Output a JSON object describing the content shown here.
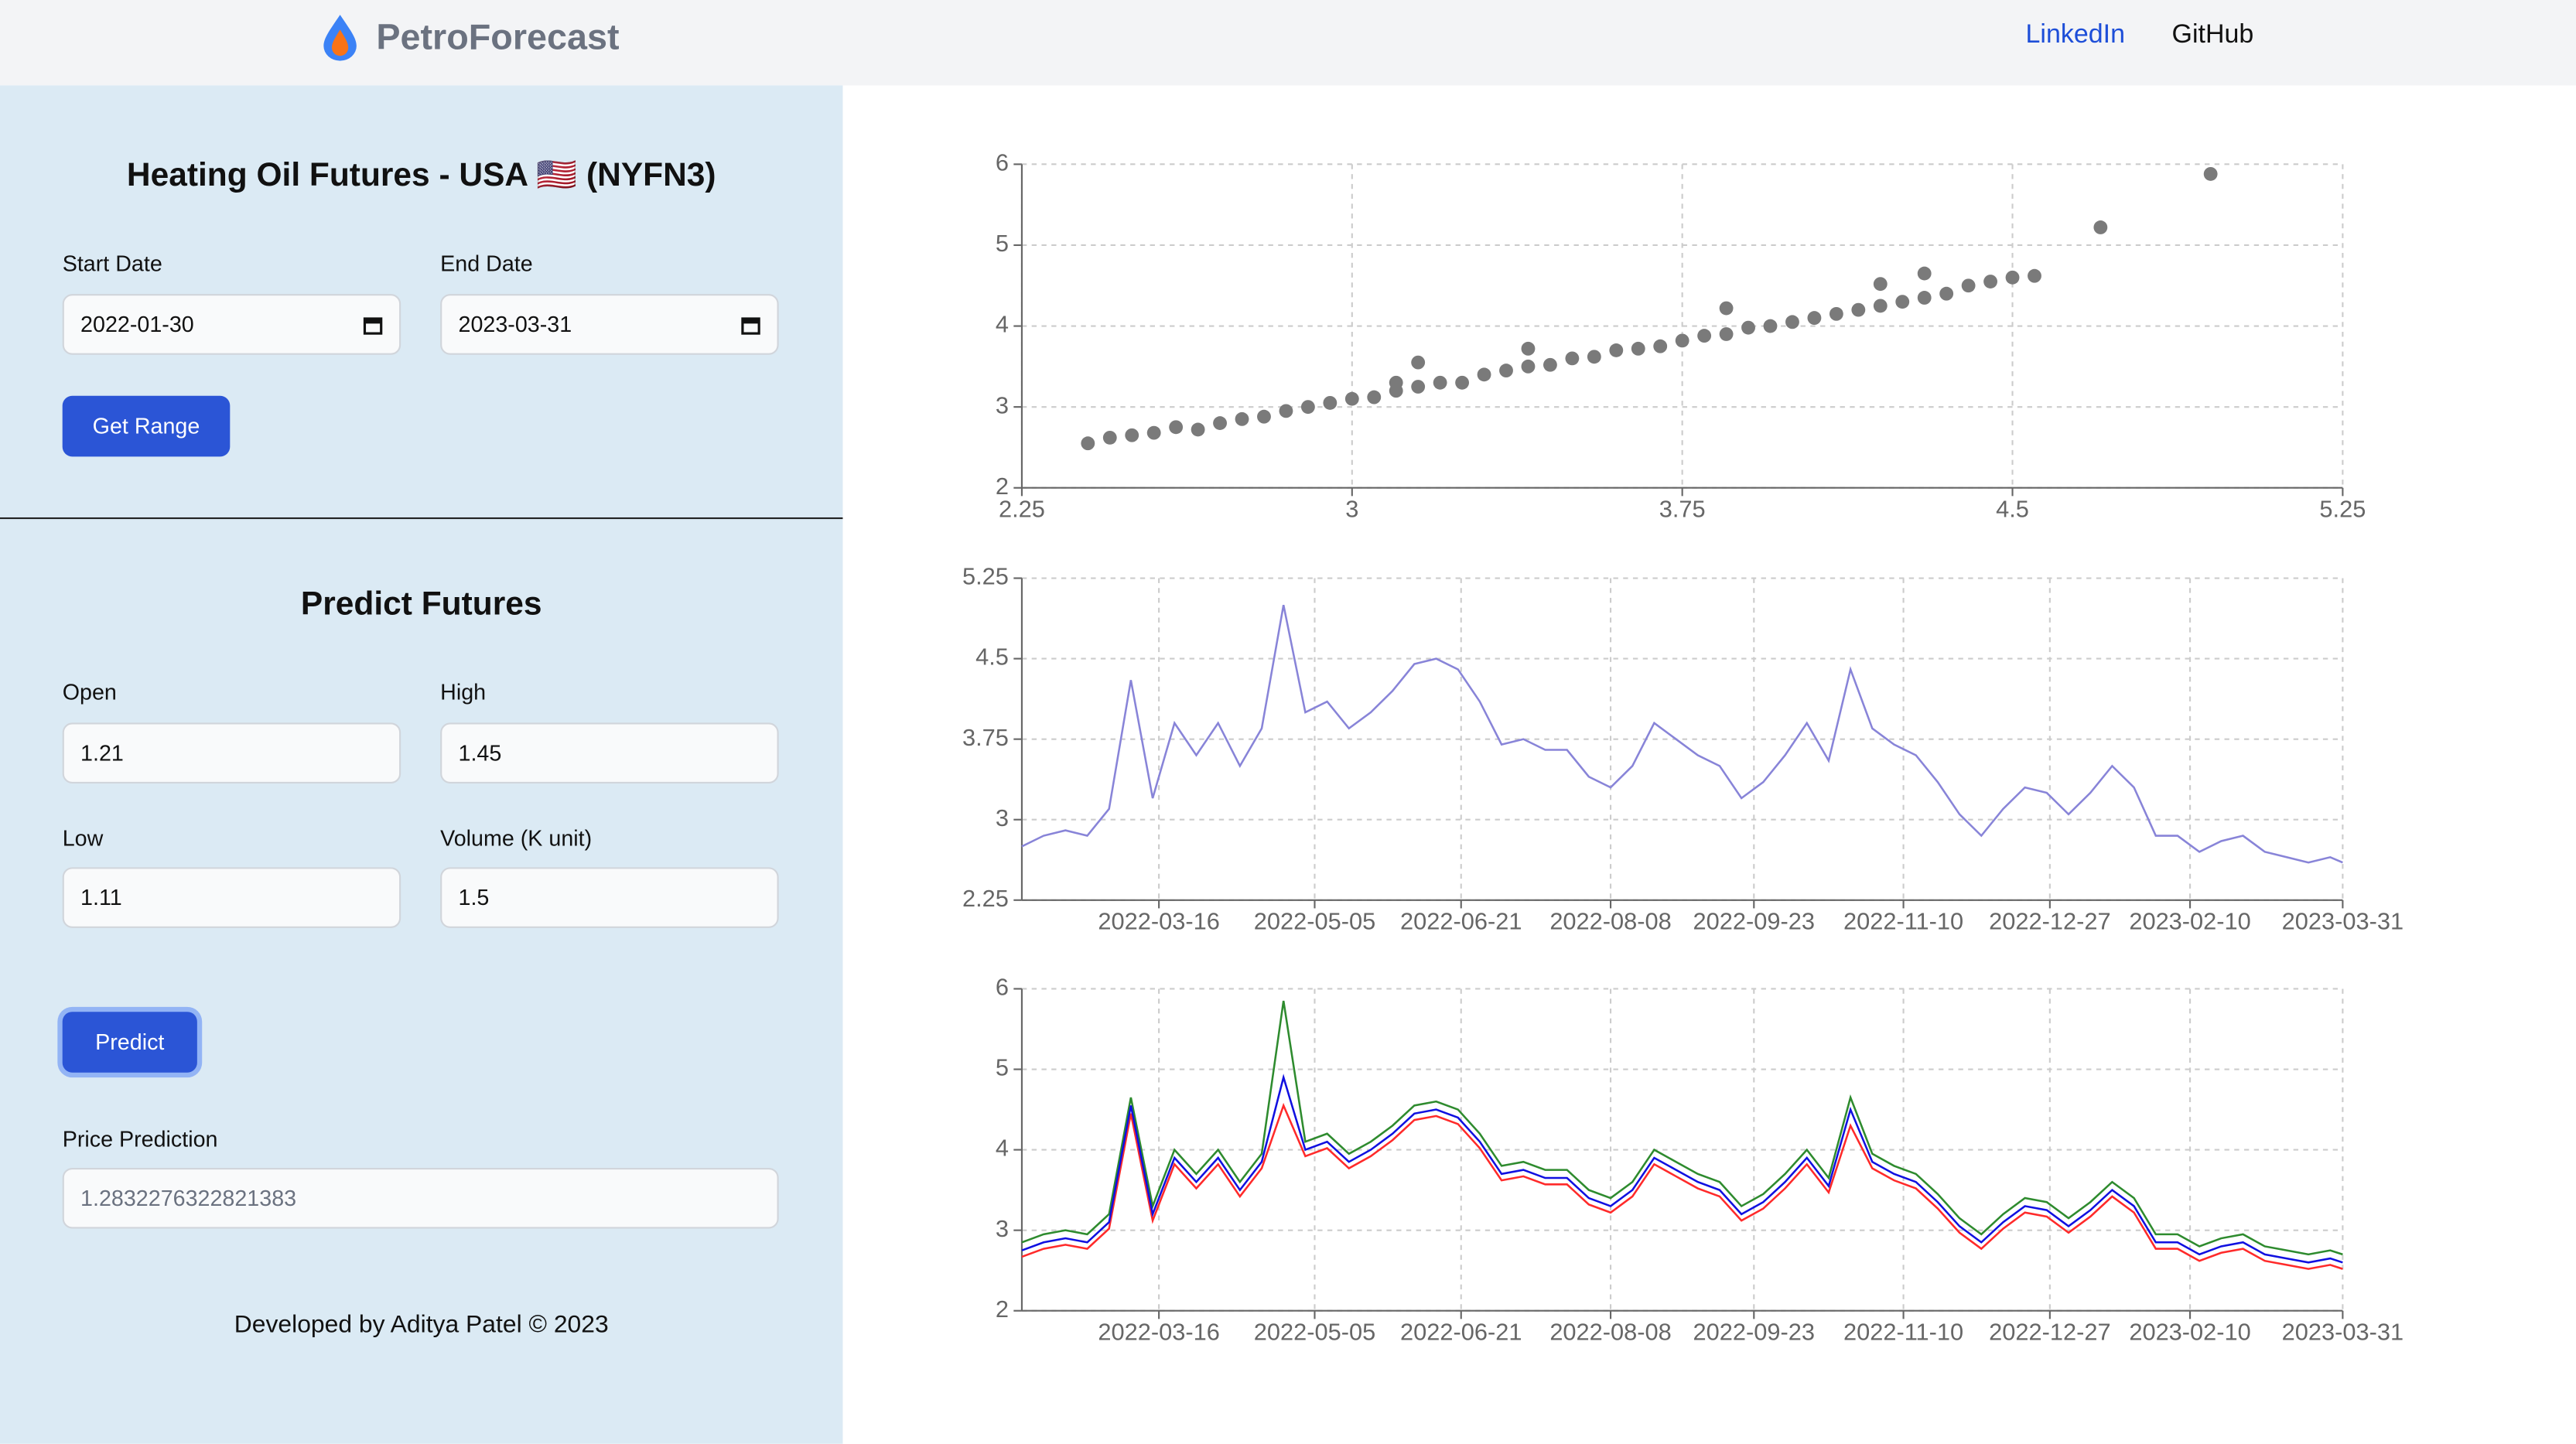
{
  "header": {
    "brand": "PetroForecast",
    "links": [
      "LinkedIn",
      "GitHub"
    ]
  },
  "range_form": {
    "title": "Heating Oil Futures - USA 🇺🇸 (NYFN3)",
    "start_label": "Start Date",
    "start_value": "2022-01-30",
    "end_label": "End Date",
    "end_value": "2023-03-31",
    "button": "Get Range"
  },
  "predict_form": {
    "title": "Predict Futures",
    "fields": [
      {
        "label": "Open",
        "value": "1.21"
      },
      {
        "label": "High",
        "value": "1.45"
      },
      {
        "label": "Low",
        "value": "1.11"
      },
      {
        "label": "Volume (K unit)",
        "value": "1.5"
      }
    ],
    "button": "Predict",
    "result_label": "Price Prediction",
    "result_value": "1.2832276322821383"
  },
  "footer": "Developed by Aditya Patel © 2023",
  "chart_data": [
    {
      "type": "scatter",
      "color": "#7a7a7a",
      "grid": true,
      "x": [
        2.4,
        2.45,
        2.5,
        2.55,
        2.6,
        2.65,
        2.7,
        2.75,
        2.8,
        2.85,
        2.9,
        2.95,
        3.0,
        3.05,
        3.1,
        3.15,
        3.2,
        3.25,
        3.3,
        3.35,
        3.4,
        3.45,
        3.5,
        3.55,
        3.6,
        3.65,
        3.7,
        3.75,
        3.8,
        3.85,
        3.9,
        3.95,
        4.0,
        4.05,
        4.1,
        4.15,
        4.2,
        4.25,
        4.3,
        4.35,
        4.4,
        4.45,
        4.5,
        4.55,
        4.7,
        4.95,
        3.15,
        3.4,
        3.85,
        4.2,
        4.3,
        3.1
      ],
      "values": [
        2.55,
        2.62,
        2.65,
        2.68,
        2.75,
        2.72,
        2.8,
        2.85,
        2.88,
        2.95,
        3.0,
        3.05,
        3.1,
        3.12,
        3.2,
        3.25,
        3.3,
        3.3,
        3.4,
        3.45,
        3.5,
        3.52,
        3.6,
        3.62,
        3.7,
        3.72,
        3.75,
        3.82,
        3.88,
        3.9,
        3.98,
        4.0,
        4.05,
        4.1,
        4.15,
        4.2,
        4.25,
        4.3,
        4.35,
        4.4,
        4.5,
        4.55,
        4.6,
        4.62,
        5.22,
        5.88,
        3.55,
        3.72,
        4.22,
        4.52,
        4.65,
        3.3
      ],
      "xlim": [
        2.25,
        5.25
      ],
      "xticks": [
        2.25,
        3,
        3.75,
        4.5,
        5.25
      ],
      "ylim": [
        2,
        6
      ],
      "yticks": [
        2,
        3,
        4,
        5,
        6
      ]
    },
    {
      "type": "line",
      "grid": true,
      "x": [
        "2022-01-31",
        "2022-02-07",
        "2022-02-14",
        "2022-02-21",
        "2022-02-28",
        "2022-03-07",
        "2022-03-14",
        "2022-03-21",
        "2022-03-28",
        "2022-04-04",
        "2022-04-11",
        "2022-04-18",
        "2022-04-25",
        "2022-05-02",
        "2022-05-09",
        "2022-05-16",
        "2022-05-23",
        "2022-05-30",
        "2022-06-06",
        "2022-06-13",
        "2022-06-20",
        "2022-06-27",
        "2022-07-04",
        "2022-07-11",
        "2022-07-18",
        "2022-07-25",
        "2022-08-01",
        "2022-08-08",
        "2022-08-15",
        "2022-08-22",
        "2022-08-29",
        "2022-09-05",
        "2022-09-12",
        "2022-09-19",
        "2022-09-26",
        "2022-10-03",
        "2022-10-10",
        "2022-10-17",
        "2022-10-24",
        "2022-10-31",
        "2022-11-07",
        "2022-11-14",
        "2022-11-21",
        "2022-11-28",
        "2022-12-05",
        "2022-12-12",
        "2022-12-19",
        "2022-12-26",
        "2023-01-02",
        "2023-01-09",
        "2023-01-16",
        "2023-01-23",
        "2023-01-30",
        "2023-02-06",
        "2023-02-13",
        "2023-02-20",
        "2023-02-27",
        "2023-03-06",
        "2023-03-13",
        "2023-03-20",
        "2023-03-27",
        "2023-03-31"
      ],
      "series": [
        {
          "color": "#8884d8",
          "values": [
            2.75,
            2.85,
            2.9,
            2.85,
            3.1,
            4.3,
            3.2,
            3.9,
            3.6,
            3.9,
            3.5,
            3.85,
            5.0,
            4.0,
            4.1,
            3.85,
            4.0,
            4.2,
            4.45,
            4.5,
            4.4,
            4.1,
            3.7,
            3.75,
            3.65,
            3.65,
            3.4,
            3.3,
            3.5,
            3.9,
            3.75,
            3.6,
            3.5,
            3.2,
            3.35,
            3.6,
            3.9,
            3.55,
            4.4,
            3.85,
            3.7,
            3.6,
            3.35,
            3.05,
            2.85,
            3.1,
            3.3,
            3.25,
            3.05,
            3.25,
            3.5,
            3.3,
            2.85,
            2.85,
            2.7,
            2.8,
            2.85,
            2.7,
            2.65,
            2.6,
            2.65,
            2.6
          ]
        }
      ],
      "xlim": [
        "2022-01-31",
        "2023-03-31"
      ],
      "xticks": [
        "2022-03-16",
        "2022-05-05",
        "2022-06-21",
        "2022-08-08",
        "2022-09-23",
        "2022-11-10",
        "2022-12-27",
        "2023-02-10",
        "2023-03-31"
      ],
      "ylim": [
        2.25,
        5.25
      ],
      "yticks": [
        2.25,
        3,
        3.75,
        4.5,
        5.25
      ]
    },
    {
      "type": "line",
      "grid": true,
      "x": [
        "2022-01-31",
        "2022-02-07",
        "2022-02-14",
        "2022-02-21",
        "2022-02-28",
        "2022-03-07",
        "2022-03-14",
        "2022-03-21",
        "2022-03-28",
        "2022-04-04",
        "2022-04-11",
        "2022-04-18",
        "2022-04-25",
        "2022-05-02",
        "2022-05-09",
        "2022-05-16",
        "2022-05-23",
        "2022-05-30",
        "2022-06-06",
        "2022-06-13",
        "2022-06-20",
        "2022-06-27",
        "2022-07-04",
        "2022-07-11",
        "2022-07-18",
        "2022-07-25",
        "2022-08-01",
        "2022-08-08",
        "2022-08-15",
        "2022-08-22",
        "2022-08-29",
        "2022-09-05",
        "2022-09-12",
        "2022-09-19",
        "2022-09-26",
        "2022-10-03",
        "2022-10-10",
        "2022-10-17",
        "2022-10-24",
        "2022-10-31",
        "2022-11-07",
        "2022-11-14",
        "2022-11-21",
        "2022-11-28",
        "2022-12-05",
        "2022-12-12",
        "2022-12-19",
        "2022-12-26",
        "2023-01-02",
        "2023-01-09",
        "2023-01-16",
        "2023-01-23",
        "2023-01-30",
        "2023-02-06",
        "2023-02-13",
        "2023-02-20",
        "2023-02-27",
        "2023-03-06",
        "2023-03-13",
        "2023-03-20",
        "2023-03-27",
        "2023-03-31"
      ],
      "series": [
        {
          "color": "#2e8b2e",
          "values": [
            2.85,
            2.95,
            3.0,
            2.95,
            3.2,
            4.65,
            3.3,
            4.0,
            3.7,
            4.0,
            3.6,
            3.95,
            5.85,
            4.1,
            4.2,
            3.95,
            4.1,
            4.3,
            4.55,
            4.6,
            4.5,
            4.2,
            3.8,
            3.85,
            3.75,
            3.75,
            3.5,
            3.4,
            3.6,
            4.0,
            3.85,
            3.7,
            3.6,
            3.3,
            3.45,
            3.7,
            4.0,
            3.65,
            4.65,
            3.95,
            3.8,
            3.7,
            3.45,
            3.15,
            2.95,
            3.2,
            3.4,
            3.35,
            3.15,
            3.35,
            3.6,
            3.4,
            2.95,
            2.95,
            2.8,
            2.9,
            2.95,
            2.8,
            2.75,
            2.7,
            2.75,
            2.7
          ]
        },
        {
          "color": "#ff2a2a",
          "values": [
            2.67,
            2.77,
            2.82,
            2.77,
            3.02,
            4.45,
            3.12,
            3.82,
            3.52,
            3.82,
            3.42,
            3.77,
            4.55,
            3.92,
            4.02,
            3.77,
            3.92,
            4.12,
            4.37,
            4.42,
            4.32,
            4.02,
            3.62,
            3.67,
            3.57,
            3.57,
            3.32,
            3.22,
            3.42,
            3.82,
            3.67,
            3.52,
            3.42,
            3.12,
            3.27,
            3.52,
            3.82,
            3.47,
            4.3,
            3.77,
            3.62,
            3.52,
            3.27,
            2.97,
            2.77,
            3.02,
            3.22,
            3.17,
            2.97,
            3.17,
            3.42,
            3.22,
            2.77,
            2.77,
            2.62,
            2.72,
            2.77,
            2.62,
            2.57,
            2.52,
            2.57,
            2.52
          ]
        },
        {
          "color": "#1010e0",
          "values": [
            2.75,
            2.85,
            2.9,
            2.85,
            3.1,
            4.55,
            3.2,
            3.9,
            3.6,
            3.9,
            3.5,
            3.85,
            4.9,
            4.0,
            4.1,
            3.85,
            4.0,
            4.2,
            4.45,
            4.5,
            4.4,
            4.1,
            3.7,
            3.75,
            3.65,
            3.65,
            3.4,
            3.3,
            3.5,
            3.9,
            3.75,
            3.6,
            3.5,
            3.2,
            3.35,
            3.6,
            3.9,
            3.55,
            4.5,
            3.85,
            3.7,
            3.6,
            3.35,
            3.05,
            2.85,
            3.1,
            3.3,
            3.25,
            3.05,
            3.25,
            3.5,
            3.3,
            2.85,
            2.85,
            2.7,
            2.8,
            2.85,
            2.7,
            2.65,
            2.6,
            2.65,
            2.6
          ]
        }
      ],
      "xlim": [
        "2022-01-31",
        "2023-03-31"
      ],
      "xticks": [
        "2022-03-16",
        "2022-05-05",
        "2022-06-21",
        "2022-08-08",
        "2022-09-23",
        "2022-11-10",
        "2022-12-27",
        "2023-02-10",
        "2023-03-31"
      ],
      "ylim": [
        2,
        6
      ],
      "yticks": [
        2,
        3,
        4,
        5,
        6
      ]
    }
  ]
}
